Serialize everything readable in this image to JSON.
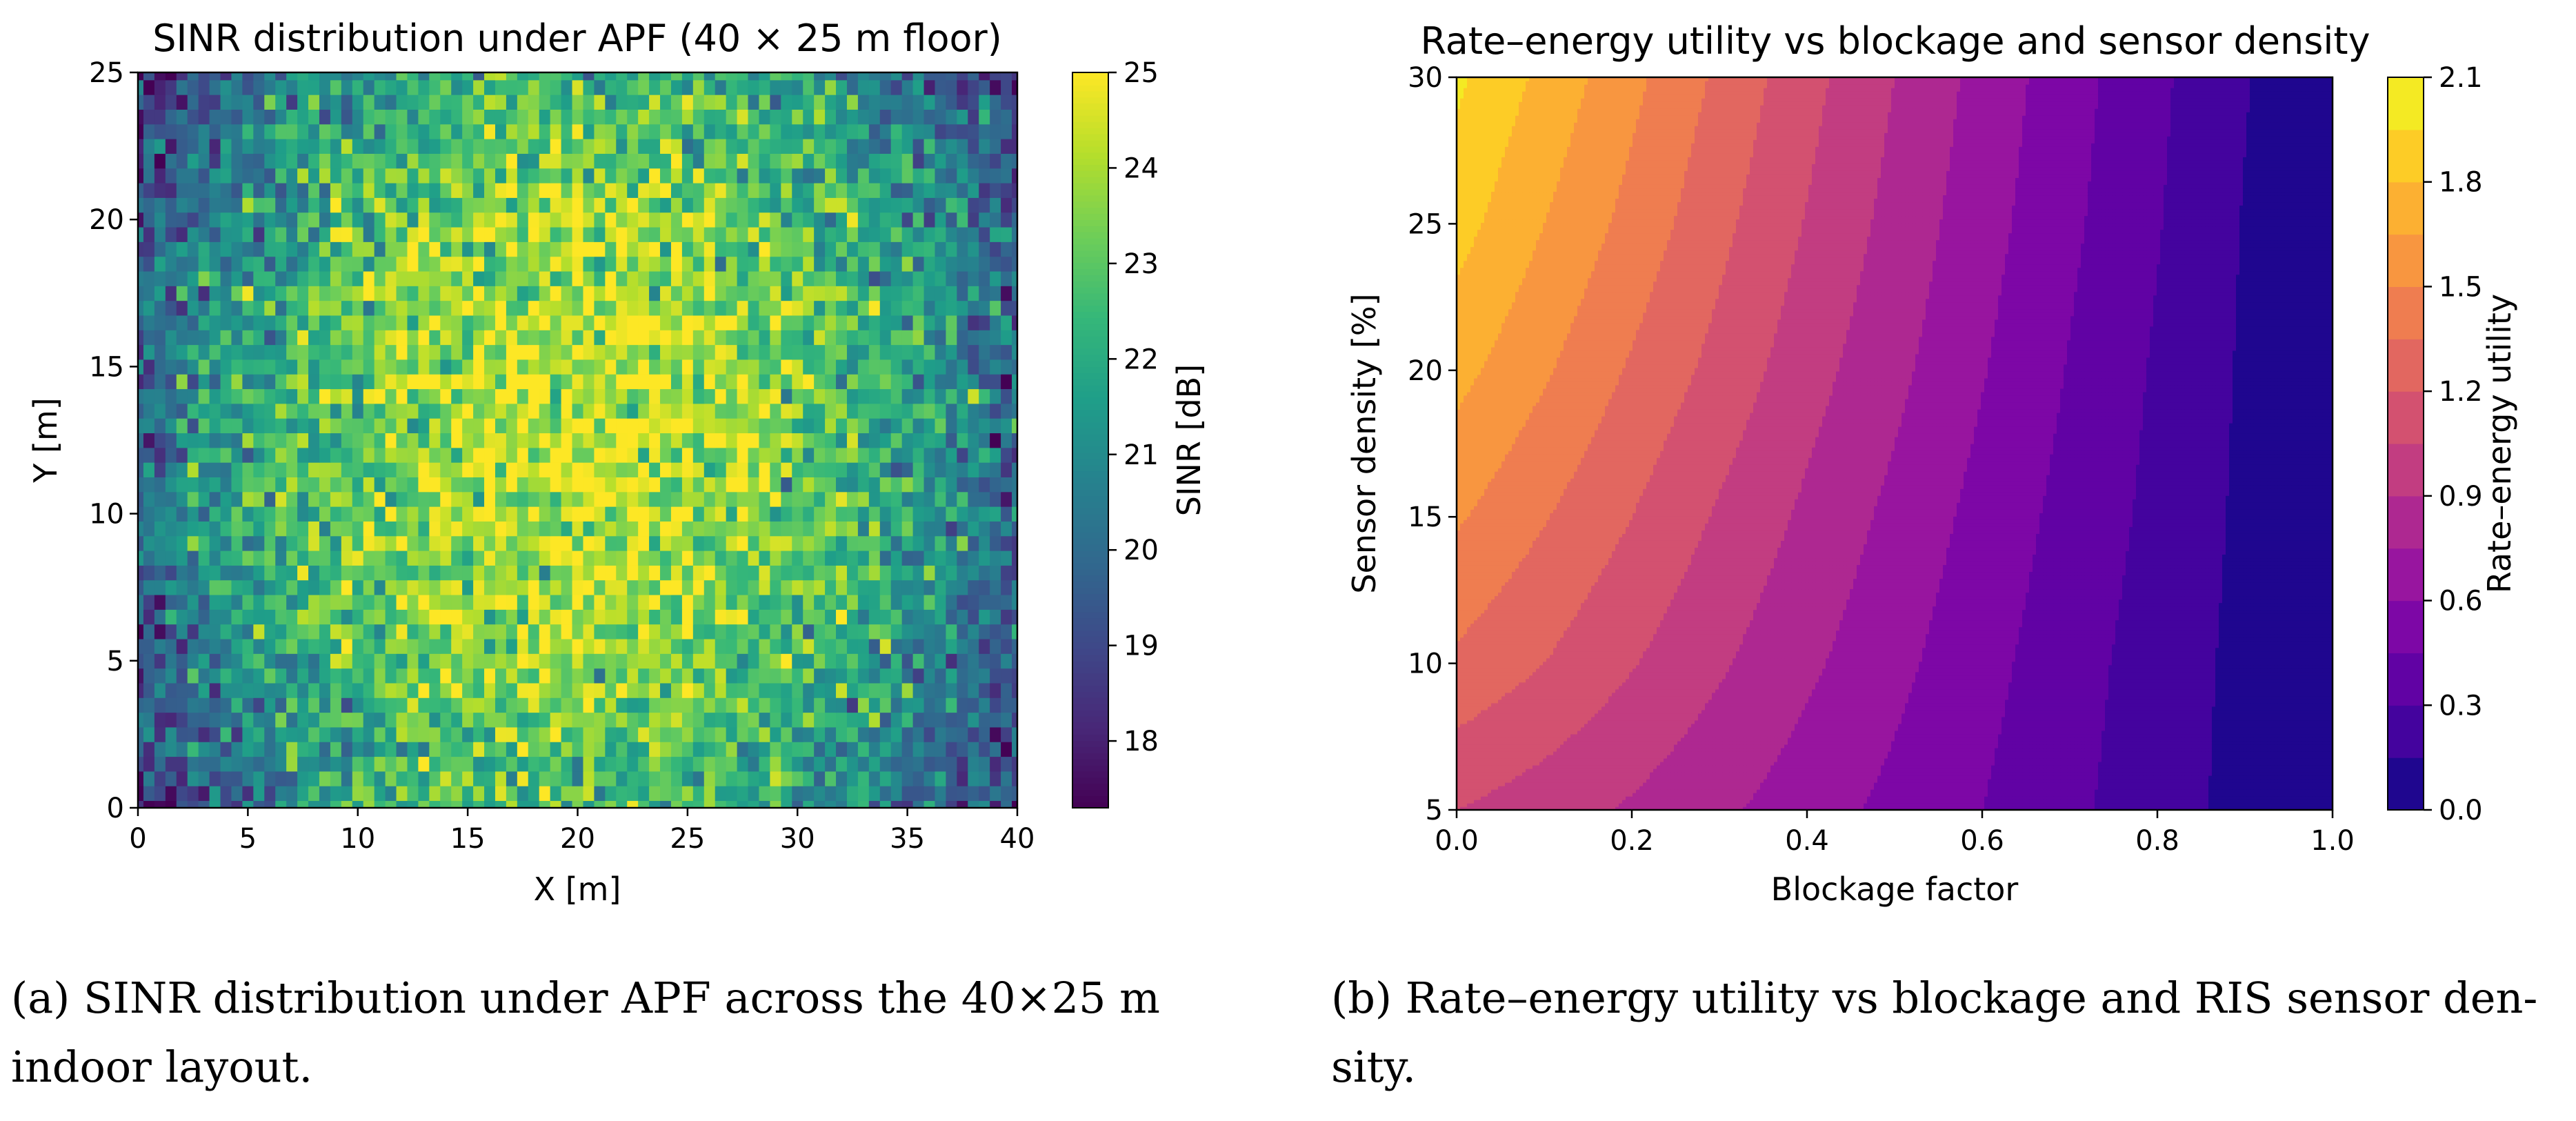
{
  "chart_data": [
    {
      "type": "heatmap",
      "title": "SINR distribution under APF (40 × 25 m floor)",
      "xlabel": "X [m]",
      "ylabel": "Y [m]",
      "xlim": [
        0,
        40
      ],
      "ylim": [
        0,
        25
      ],
      "xticks": [
        "0",
        "5",
        "10",
        "15",
        "20",
        "25",
        "30",
        "35",
        "40"
      ],
      "yticks": [
        "0",
        "5",
        "10",
        "15",
        "20",
        "25"
      ],
      "grid": false,
      "colormap": "viridis",
      "resolution_m": 0.5,
      "model": {
        "peak_sinr_db": 24.3,
        "center_x_m": 20,
        "center_y_m": 12.5,
        "falloff_db_per_norm_dist": 5.0,
        "noise_db": 1.1
      },
      "colorbar": {
        "label": "SINR [dB]",
        "range": [
          17.3,
          25.0
        ],
        "ticks": [
          "18",
          "19",
          "20",
          "21",
          "22",
          "23",
          "24",
          "25"
        ]
      },
      "caption": [
        "(a) SINR distribution under APF across the 40×25 m",
        "indoor layout."
      ]
    },
    {
      "type": "heatmap",
      "title": "Rate–energy utility vs blockage and sensor density",
      "xlabel": "Blockage factor",
      "ylabel": "Sensor density [%]",
      "xlim": [
        0.0,
        1.0
      ],
      "ylim": [
        5,
        30
      ],
      "xticks": [
        "0.0",
        "0.2",
        "0.4",
        "0.6",
        "0.8",
        "1.0"
      ],
      "yticks": [
        "5",
        "10",
        "15",
        "20",
        "25",
        "30"
      ],
      "grid": false,
      "colormap": "plasma",
      "x": [
        0.0,
        0.1,
        0.2,
        0.3,
        0.4,
        0.5,
        0.6,
        0.7,
        0.8,
        0.9,
        1.0
      ],
      "y": [
        5,
        10,
        15,
        20,
        25,
        30
      ],
      "z": [
        [
          1.05,
          0.97,
          0.88,
          0.78,
          0.67,
          0.56,
          0.45,
          0.33,
          0.22,
          0.1,
          0.0
        ],
        [
          1.32,
          1.2,
          1.06,
          0.92,
          0.78,
          0.64,
          0.5,
          0.36,
          0.23,
          0.11,
          0.0
        ],
        [
          1.52,
          1.36,
          1.2,
          1.03,
          0.87,
          0.71,
          0.55,
          0.4,
          0.26,
          0.12,
          0.0
        ],
        [
          1.7,
          1.52,
          1.33,
          1.15,
          0.96,
          0.79,
          0.61,
          0.44,
          0.28,
          0.13,
          0.0
        ],
        [
          1.86,
          1.65,
          1.45,
          1.24,
          1.04,
          0.85,
          0.66,
          0.48,
          0.31,
          0.14,
          0.0
        ],
        [
          1.98,
          1.76,
          1.54,
          1.32,
          1.1,
          0.9,
          0.7,
          0.51,
          0.33,
          0.16,
          0.0
        ]
      ],
      "levels": [
        0.0,
        0.15,
        0.3,
        0.45,
        0.6,
        0.75,
        0.9,
        1.05,
        1.2,
        1.35,
        1.5,
        1.65,
        1.8,
        1.95,
        2.1
      ],
      "colorbar": {
        "label": "Rate–energy utility",
        "range": [
          0.0,
          2.1
        ],
        "ticks": [
          "0.0",
          "0.3",
          "0.6",
          "0.9",
          "1.2",
          "1.5",
          "1.8",
          "2.1"
        ]
      },
      "caption": [
        "(b) Rate–energy utility vs blockage and RIS sensor den-",
        "sity."
      ]
    }
  ]
}
